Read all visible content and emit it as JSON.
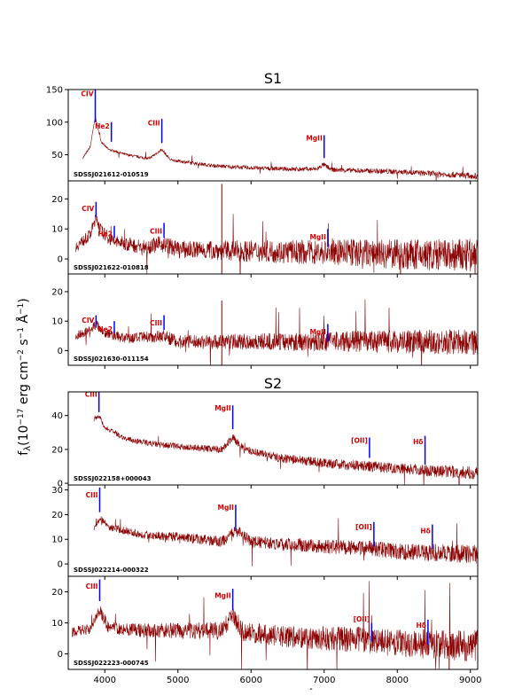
{
  "chart_data": {
    "type": "line",
    "ylabel": "fλ (10⁻¹⁷ erg cm⁻² s⁻¹ Å⁻¹)",
    "ylabel_main": "f",
    "ylabel_sub": "λ",
    "ylabel_unit": "(10",
    "ylabel_exp1": "−17",
    "ylabel_mid1": " erg cm",
    "ylabel_exp2": "−2",
    "ylabel_mid2": " s",
    "ylabel_exp3": "−1",
    "ylabel_mid3": " Å",
    "ylabel_exp4": "−1",
    "ylabel_close": ")",
    "xlabel": "ˆ",
    "xlim": [
      3500,
      9100
    ],
    "xticks": [
      4000,
      5000,
      6000,
      7000,
      8000,
      9000
    ],
    "line_color": "#8b0000",
    "marker_color": "#0000ff",
    "label_color": "#d40000",
    "groups": [
      {
        "title": "S1",
        "panels": [
          {
            "object": "SDSSJ021612-010519",
            "ylim": [
              10,
              150
            ],
            "yticks": [
              50,
              100,
              150
            ],
            "spectrum": {
              "continuum": [
                [
                  3700,
                  45
                ],
                [
                  3800,
                  62
                ],
                [
                  3870,
                  108
                ],
                [
                  3950,
                  70
                ],
                [
                  4050,
                  58
                ],
                [
                  4300,
                  50
                ],
                [
                  4600,
                  44
                ],
                [
                  4780,
                  58
                ],
                [
                  4900,
                  42
                ],
                [
                  5500,
                  33
                ],
                [
                  6000,
                  30
                ],
                [
                  6500,
                  28
                ],
                [
                  6900,
                  28
                ],
                [
                  6990,
                  35
                ],
                [
                  7100,
                  27
                ],
                [
                  8000,
                  24
                ],
                [
                  9000,
                  18
                ],
                [
                  9100,
                  17
                ]
              ],
              "noise": 1.5
            },
            "lines": [
              {
                "label": "CIV",
                "x": 3870,
                "top": 150,
                "bottom": 100,
                "label_y": 140
              },
              {
                "label": "He2",
                "x": 4090,
                "top": 100,
                "bottom": 70,
                "label_y": 90
              },
              {
                "label": "CIII",
                "x": 4780,
                "top": 105,
                "bottom": 68,
                "label_y": 95
              },
              {
                "label": "MgII",
                "x": 7000,
                "top": 80,
                "bottom": 45,
                "label_y": 72
              }
            ]
          },
          {
            "object": "SDSSJ021622-010818",
            "ylim": [
              -5,
              26
            ],
            "yticks": [
              0,
              10,
              20
            ],
            "spectrum": {
              "continuum": [
                [
                  3600,
                  4
                ],
                [
                  3800,
                  8
                ],
                [
                  3880,
                  14
                ],
                [
                  3960,
                  9
                ],
                [
                  4100,
                  6
                ],
                [
                  4500,
                  4
                ],
                [
                  4800,
                  5
                ],
                [
                  5000,
                  3.2
                ],
                [
                  6000,
                  2.6
                ],
                [
                  7000,
                  2.2
                ],
                [
                  7100,
                  2.5
                ],
                [
                  8000,
                  1.5
                ],
                [
                  9100,
                  1
                ]
              ],
              "noise": 1.8
            },
            "spikes": [
              [
                5600,
                25
              ],
              [
                5600,
                -5
              ]
            ],
            "lines": [
              {
                "label": "CIV",
                "x": 3880,
                "top": 19,
                "bottom": 14,
                "label_y": 16
              },
              {
                "label": "He2",
                "x": 4130,
                "top": 11,
                "bottom": 7,
                "label_y": 7.5
              },
              {
                "label": "CIII",
                "x": 4810,
                "top": 12,
                "bottom": 7,
                "label_y": 8.5
              },
              {
                "label": "MgII",
                "x": 7050,
                "top": 10,
                "bottom": 4,
                "label_y": 6.5
              }
            ]
          },
          {
            "object": "SDSSJ021630-011154",
            "ylim": [
              -5,
              26
            ],
            "yticks": [
              0,
              10,
              20
            ],
            "spectrum": {
              "continuum": [
                [
                  3600,
                  5
                ],
                [
                  3800,
                  7
                ],
                [
                  3880,
                  9
                ],
                [
                  4000,
                  6
                ],
                [
                  4300,
                  4
                ],
                [
                  4800,
                  5
                ],
                [
                  5000,
                  3
                ],
                [
                  6000,
                  3
                ],
                [
                  7000,
                  3
                ],
                [
                  7100,
                  3.2
                ],
                [
                  8000,
                  3
                ],
                [
                  9100,
                  3
                ]
              ],
              "noise": 1.4
            },
            "spikes": [
              [
                5600,
                17
              ],
              [
                5600,
                -5
              ]
            ],
            "lines": [
              {
                "label": "CIV",
                "x": 3880,
                "top": 12,
                "bottom": 8,
                "label_y": 9.5
              },
              {
                "label": "He2",
                "x": 4130,
                "top": 10,
                "bottom": 6,
                "label_y": 6.5
              },
              {
                "label": "CIII",
                "x": 4810,
                "top": 12,
                "bottom": 7,
                "label_y": 8.5
              },
              {
                "label": "MgII",
                "x": 7050,
                "top": 9,
                "bottom": 3,
                "label_y": 5.5
              }
            ]
          }
        ]
      },
      {
        "title": "S2",
        "panels": [
          {
            "object": "SDSSJ022158+000043",
            "ylim": [
              -1,
              54
            ],
            "yticks": [
              0,
              20,
              40
            ],
            "spectrum": {
              "continuum": [
                [
                  3850,
                  38
                ],
                [
                  3920,
                  40
                ],
                [
                  4000,
                  33
                ],
                [
                  4300,
                  26
                ],
                [
                  4700,
                  23
                ],
                [
                  5200,
                  21
                ],
                [
                  5600,
                  20
                ],
                [
                  5750,
                  27
                ],
                [
                  5900,
                  20
                ],
                [
                  6400,
                  15
                ],
                [
                  7000,
                  12
                ],
                [
                  7600,
                  10
                ],
                [
                  8000,
                  9
                ],
                [
                  8600,
                  7
                ],
                [
                  9100,
                  6
                ]
              ],
              "noise": 1.2
            },
            "lines": [
              {
                "label": "CIII",
                "x": 3920,
                "top": 54,
                "bottom": 42,
                "label_y": 51
              },
              {
                "label": "MgII",
                "x": 5750,
                "top": 46,
                "bottom": 32,
                "label_y": 43
              },
              {
                "label": "[OII]",
                "x": 7620,
                "top": 27,
                "bottom": 15,
                "label_y": 24
              },
              {
                "label": "Hδ",
                "x": 8380,
                "top": 28,
                "bottom": 11,
                "label_y": 23
              }
            ]
          },
          {
            "object": "SDSSJ022214-000322",
            "ylim": [
              -5,
              32
            ],
            "yticks": [
              0,
              10,
              20,
              30
            ],
            "spectrum": {
              "continuum": [
                [
                  3850,
                  14
                ],
                [
                  3930,
                  19
                ],
                [
                  4050,
                  15
                ],
                [
                  4500,
                  12
                ],
                [
                  5000,
                  11
                ],
                [
                  5600,
                  9
                ],
                [
                  5800,
                  13.5
                ],
                [
                  6000,
                  9
                ],
                [
                  6500,
                  8
                ],
                [
                  7000,
                  7
                ],
                [
                  7600,
                  6.5
                ],
                [
                  8000,
                  5
                ],
                [
                  8600,
                  4.5
                ],
                [
                  9100,
                  4
                ]
              ],
              "noise": 1.2
            },
            "lines": [
              {
                "label": "CIII",
                "x": 3930,
                "top": 31,
                "bottom": 21,
                "label_y": 27
              },
              {
                "label": "MgII",
                "x": 5790,
                "top": 24,
                "bottom": 14,
                "label_y": 22
              },
              {
                "label": "[OII]",
                "x": 7680,
                "top": 17,
                "bottom": 7,
                "label_y": 14
              },
              {
                "label": "Hδ",
                "x": 8480,
                "top": 16,
                "bottom": 6,
                "label_y": 12.5
              }
            ]
          },
          {
            "object": "SDSSJ022223-000745",
            "ylim": [
              -5,
              25
            ],
            "yticks": [
              0,
              10,
              20
            ],
            "spectrum": {
              "continuum": [
                [
                  3550,
                  7
                ],
                [
                  3800,
                  8
                ],
                [
                  3930,
                  14
                ],
                [
                  4050,
                  8.5
                ],
                [
                  4500,
                  7.5
                ],
                [
                  5000,
                  7.5
                ],
                [
                  5600,
                  7.5
                ],
                [
                  5750,
                  12.5
                ],
                [
                  5900,
                  7
                ],
                [
                  6500,
                  5.5
                ],
                [
                  7000,
                  5
                ],
                [
                  7600,
                  4.5
                ],
                [
                  8000,
                  3.5
                ],
                [
                  8600,
                  3
                ],
                [
                  9100,
                  2.5
                ]
              ],
              "noise": 1.6
            },
            "lines": [
              {
                "label": "CIII",
                "x": 3930,
                "top": 24,
                "bottom": 17,
                "label_y": 21
              },
              {
                "label": "MgII",
                "x": 5750,
                "top": 21,
                "bottom": 14,
                "label_y": 18
              },
              {
                "label": "[OII]",
                "x": 7650,
                "top": 10,
                "bottom": 4,
                "label_y": 10.5
              },
              {
                "label": "Hδ",
                "x": 8420,
                "top": 11,
                "bottom": 3,
                "label_y": 8.5
              }
            ]
          }
        ]
      }
    ]
  }
}
